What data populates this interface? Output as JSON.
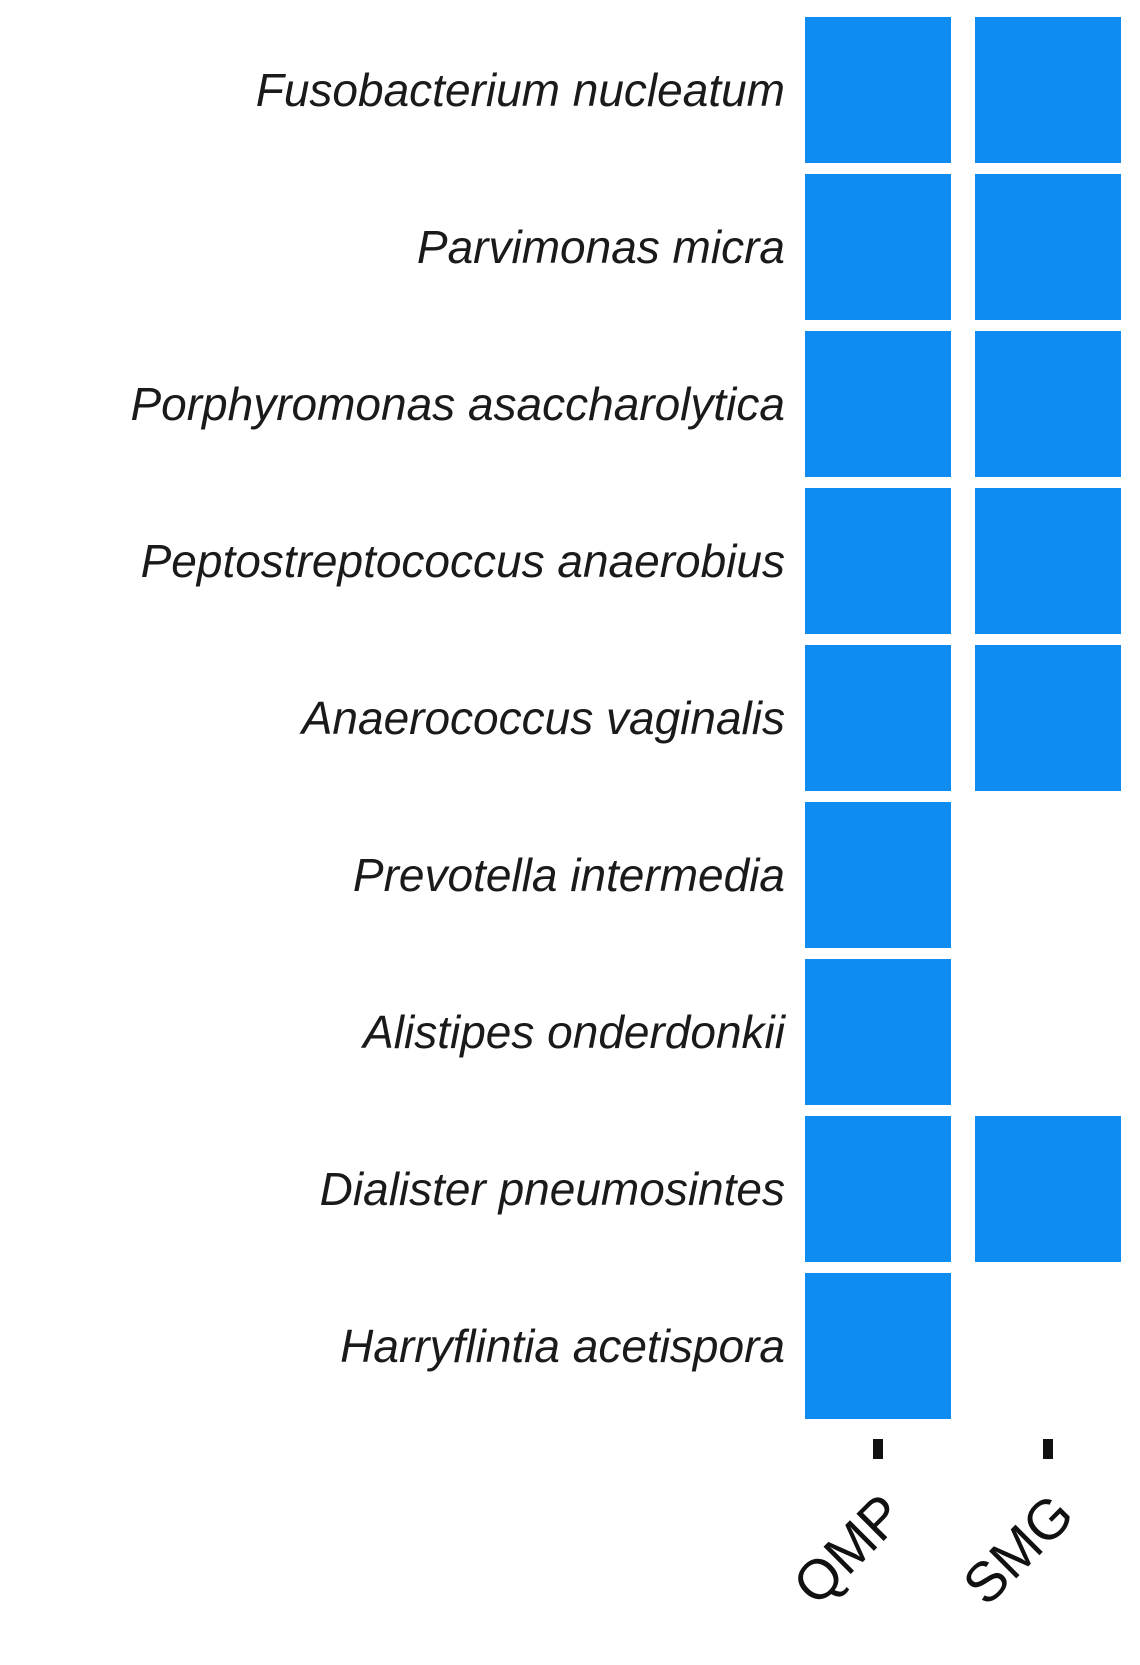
{
  "chart_data": {
    "type": "heatmap",
    "title": "",
    "xlabel": "",
    "ylabel": "",
    "columns": [
      "QMP",
      "SMG"
    ],
    "rows": [
      "Fusobacterium nucleatum",
      "Parvimonas micra",
      "Porphyromonas asaccharolytica",
      "Peptostreptococcus anaerobius",
      "Anaerococcus vaginalis",
      "Prevotella intermedia",
      "Alistipes onderdonkii",
      "Dialister pneumosintes",
      "Harryflintia acetispora"
    ],
    "values": [
      [
        1,
        1
      ],
      [
        1,
        1
      ],
      [
        1,
        1
      ],
      [
        1,
        1
      ],
      [
        1,
        1
      ],
      [
        1,
        0
      ],
      [
        1,
        0
      ],
      [
        1,
        1
      ],
      [
        1,
        0
      ]
    ],
    "present_color": "#0f8cf2",
    "absent_color": "#ffffff",
    "legend": "none",
    "grid": false
  }
}
